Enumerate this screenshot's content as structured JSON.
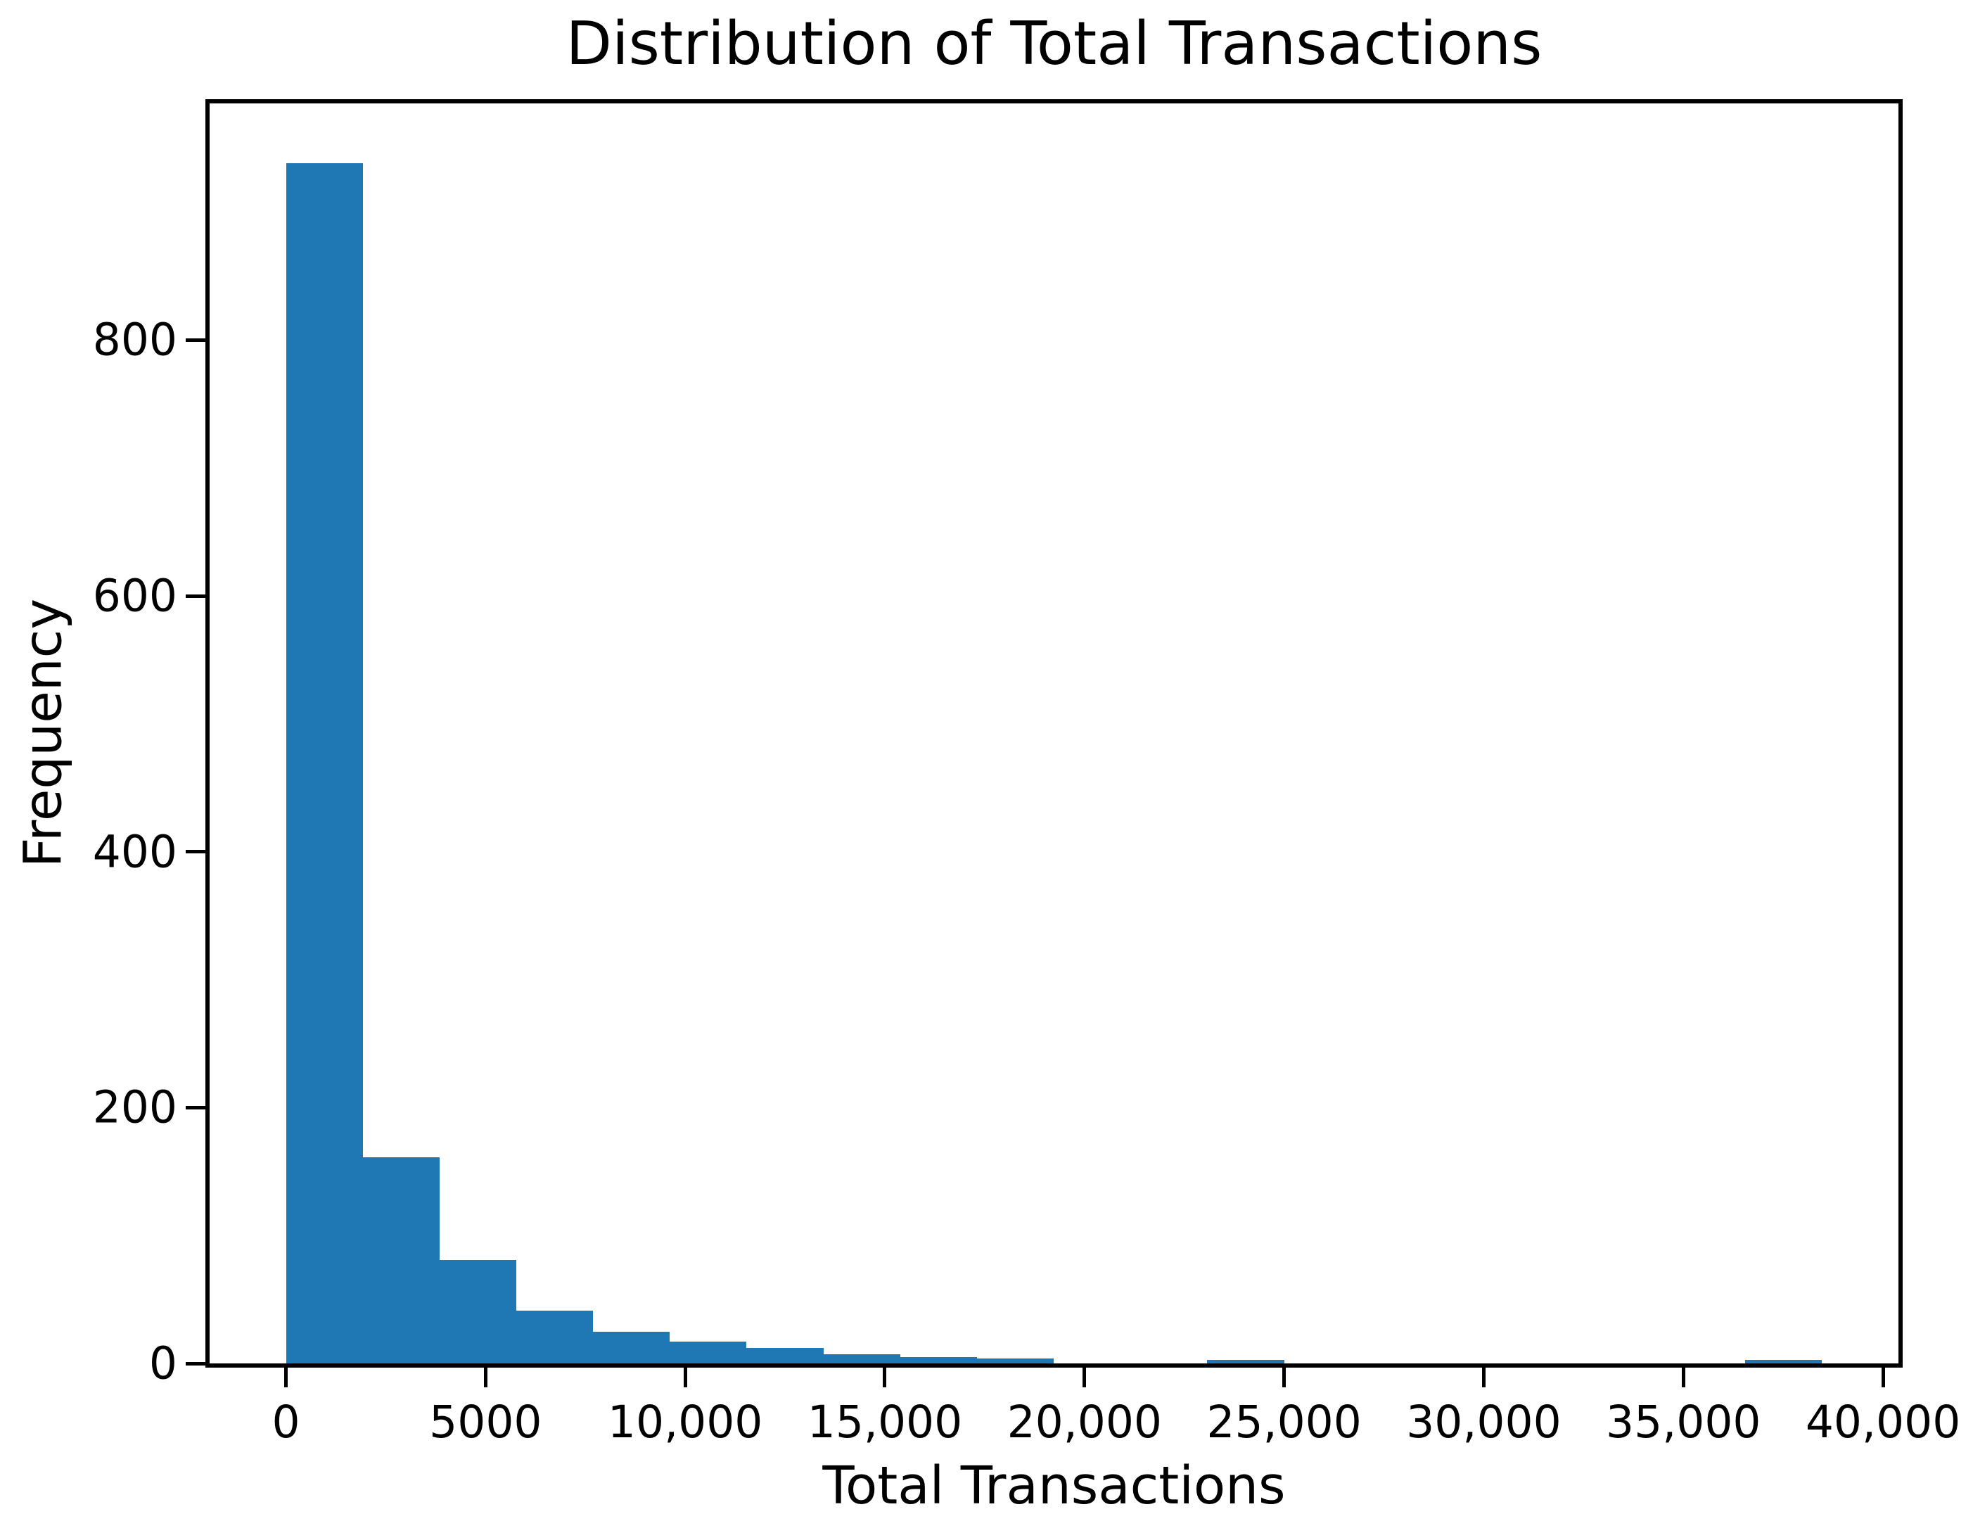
{
  "figure": {
    "background": "#ffffff",
    "title": "Distribution of Total Transactions",
    "xlabel": "Total Transactions",
    "ylabel": "Frequency"
  },
  "chart_data": {
    "type": "bar",
    "subtype": "histogram",
    "title": "Distribution of Total Transactions",
    "xlabel": "Total Transactions",
    "ylabel": "Frequency",
    "bar_color": "#1f77b4",
    "axis_color": "#000000",
    "text_color": "#000000",
    "grid": false,
    "legend": null,
    "bin_start": 0,
    "bin_width": 1923,
    "bin_count": 20,
    "bin_counts": [
      938,
      161,
      81,
      41,
      25,
      17,
      12,
      7,
      5,
      4,
      0,
      0,
      3,
      0,
      0,
      0,
      0,
      0,
      0,
      3
    ],
    "xlim": [
      -1912,
      40386
    ],
    "ylim": [
      0,
      985
    ],
    "x_ticks": [
      {
        "value": 0,
        "label": "0"
      },
      {
        "value": 5000,
        "label": "5000"
      },
      {
        "value": 10000,
        "label": "10,000"
      },
      {
        "value": 15000,
        "label": "15,000"
      },
      {
        "value": 20000,
        "label": "20,000"
      },
      {
        "value": 25000,
        "label": "25,000"
      },
      {
        "value": 30000,
        "label": "30,000"
      },
      {
        "value": 35000,
        "label": "35,000"
      },
      {
        "value": 40000,
        "label": "40,000"
      }
    ],
    "y_ticks": [
      {
        "value": 0,
        "label": "0"
      },
      {
        "value": 200,
        "label": "200"
      },
      {
        "value": 400,
        "label": "400"
      },
      {
        "value": 600,
        "label": "600"
      },
      {
        "value": 800,
        "label": "800"
      }
    ]
  }
}
